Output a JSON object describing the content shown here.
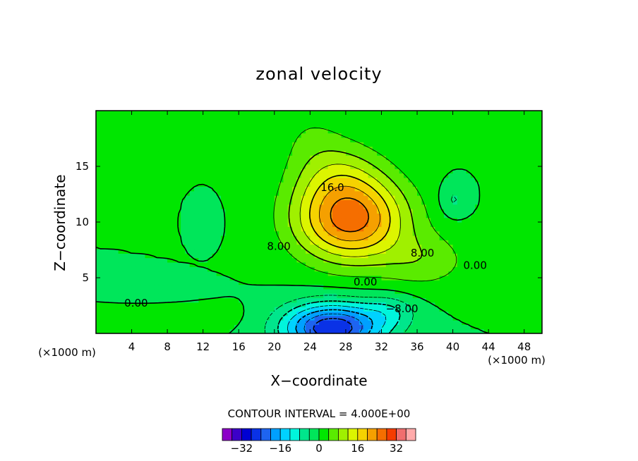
{
  "chart_data": {
    "type": "heatmap",
    "title": "zonal velocity",
    "xlabel": "X−coordinate",
    "ylabel": "Z−coordinate",
    "x_ticks": [
      "4",
      "8",
      "12",
      "16",
      "20",
      "24",
      "28",
      "32",
      "36",
      "40",
      "44",
      "48"
    ],
    "y_ticks": [
      "5",
      "10",
      "15"
    ],
    "x_unit_left": "(×1000 m)",
    "x_unit_right": "(×1000 m)",
    "xlim": [
      0,
      50
    ],
    "ylim": [
      0,
      20
    ],
    "contour_interval_text": "CONTOUR INTERVAL = 4.000E+00",
    "contour_labels": [
      {
        "text": "16.0",
        "x": 26.5,
        "y": 12.8
      },
      {
        "text": "8.00",
        "x": 20.5,
        "y": 7.5
      },
      {
        "text": "8.00",
        "x": 36.6,
        "y": 6.9
      },
      {
        "text": "0.00",
        "x": 42.5,
        "y": 5.8
      },
      {
        "text": "0.00",
        "x": 30.2,
        "y": 4.3
      },
      {
        "text": "−8.00",
        "x": 34.3,
        "y": 1.9
      },
      {
        "text": "0.00",
        "x": 4.5,
        "y": 2.4
      }
    ],
    "colorbar": {
      "levels": [
        -36,
        -32,
        -28,
        -24,
        -20,
        -16,
        -12,
        -8,
        -4,
        0,
        4,
        8,
        12,
        16,
        20,
        24,
        28,
        32,
        36
      ],
      "colors": [
        "#8c00c8",
        "#3c00c8",
        "#0000d2",
        "#0a32e6",
        "#1e64f0",
        "#00a0ff",
        "#00d2ff",
        "#00f5dc",
        "#00e68c",
        "#00e65a",
        "#00e600",
        "#5aeb00",
        "#a0f000",
        "#dcf500",
        "#f5d200",
        "#f5a000",
        "#f56e00",
        "#f53c00",
        "#f06e6e",
        "#ffaaaa"
      ],
      "tick_labels": [
        {
          "label": "−32",
          "value": -32
        },
        {
          "label": "−16",
          "value": -16
        },
        {
          "label": "0",
          "value": 0
        },
        {
          "label": "16",
          "value": 16
        },
        {
          "label": "32",
          "value": 32
        }
      ]
    },
    "features": [
      {
        "desc": "positive jet maximum",
        "x": 28.5,
        "z": 10.2,
        "peak": 26
      },
      {
        "desc": "negative near-surface minimum",
        "x": 26.5,
        "z": 0.6,
        "peak": -26
      }
    ]
  }
}
